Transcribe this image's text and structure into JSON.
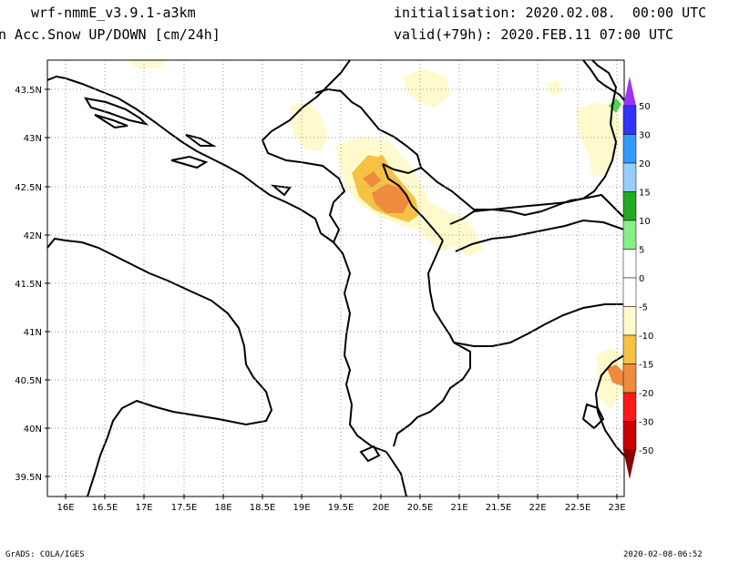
{
  "header": {
    "model": "wrf-nmmE_v3.9.1-a3km",
    "variable": "n Acc.Snow UP/DOWN [cm/24h]",
    "init": "initialisation: 2020.02.08.  00:00 UTC",
    "valid": "valid(+79h): 2020.FEB.11 07:00 UTC"
  },
  "axes": {
    "lat_labels": [
      "43.5N",
      "43N",
      "42.5N",
      "42N",
      "41.5N",
      "41N",
      "40.5N",
      "40N",
      "39.5N"
    ],
    "lon_labels": [
      "16E",
      "16.5E",
      "17E",
      "17.5E",
      "18E",
      "18.5E",
      "19E",
      "19.5E",
      "20E",
      "20.5E",
      "21E",
      "21.5E",
      "22E",
      "22.5E",
      "23E"
    ]
  },
  "colorbar": {
    "labels": [
      "50",
      "30",
      "20",
      "15",
      "10",
      "5",
      "0",
      "-5",
      "-10",
      "-15",
      "-20",
      "-30",
      "-50"
    ],
    "colors": [
      "#9933ff",
      "#3333ff",
      "#3399ff",
      "#99ccff",
      "#22aa22",
      "#88ee88",
      "#ffffff",
      "#ffffff",
      "#fffacd",
      "#f6c244",
      "#f08a3c",
      "#ff1a1a",
      "#cc0000",
      "#8a0000"
    ]
  },
  "footer": {
    "left": "GrADS: COLA/IGES",
    "right": "2020-02-08-06:52"
  }
}
